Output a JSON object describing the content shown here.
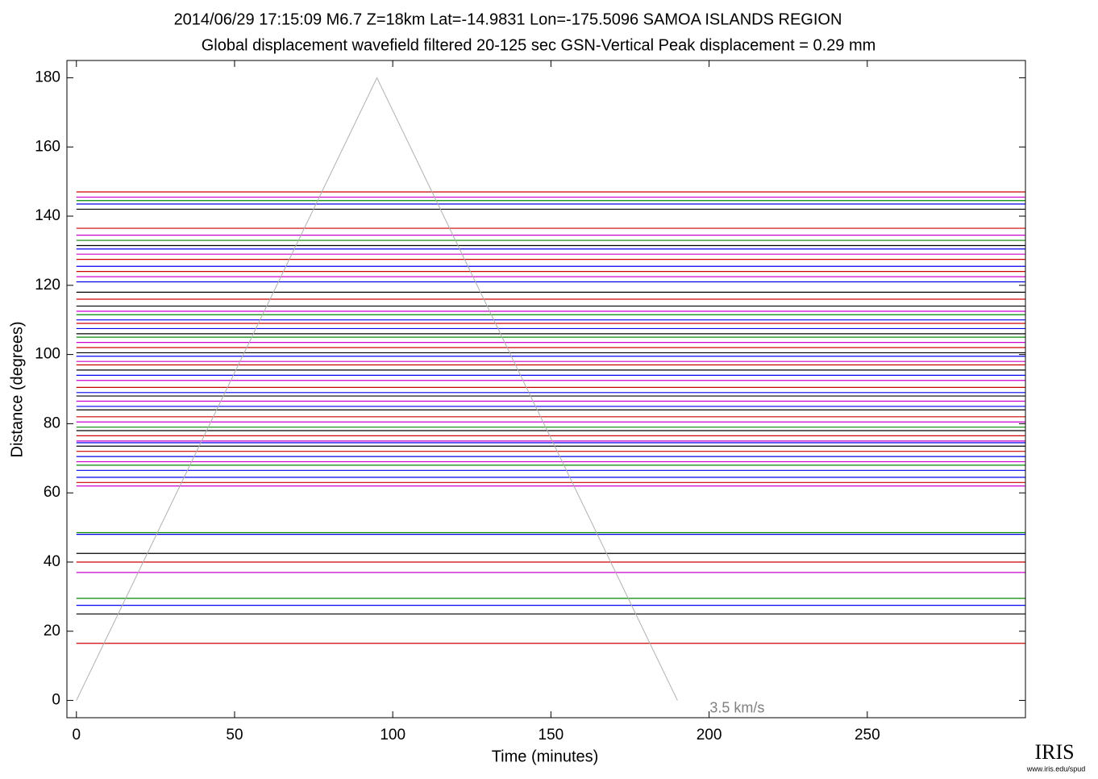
{
  "chart_data": {
    "type": "record-section",
    "title": "2014/06/29  17:15:09  M6.7  Z=18km  Lat=-14.9831 Lon=-175.5096  SAMOA ISLANDS REGION",
    "subtitle": "Global displacement wavefield     filtered 20-125 sec    GSN-Vertical    Peak displacement = 0.29 mm",
    "xlabel": "Time (minutes)",
    "ylabel": "Distance (degrees)",
    "xlim": [
      -3,
      300
    ],
    "ylim": [
      -5,
      185
    ],
    "xticks": [
      0,
      50,
      100,
      150,
      200,
      250
    ],
    "yticks": [
      0,
      20,
      40,
      60,
      80,
      100,
      120,
      140,
      160,
      180
    ],
    "annotation": {
      "label": "3.5 km/s",
      "x": [
        0,
        95,
        190
      ],
      "y": [
        0,
        180,
        0
      ],
      "color": "#b0b0b0"
    },
    "traces": [
      {
        "distance": 16.5,
        "color": "#cc0000"
      },
      {
        "distance": 25,
        "color": "#000000"
      },
      {
        "distance": 27.5,
        "color": "#0000ee"
      },
      {
        "distance": 29.5,
        "color": "#008800"
      },
      {
        "distance": 37,
        "color": "#cc00cc"
      },
      {
        "distance": 40,
        "color": "#cc0000"
      },
      {
        "distance": 42.5,
        "color": "#000000"
      },
      {
        "distance": 48,
        "color": "#0000ee"
      },
      {
        "distance": 48.5,
        "color": "#008800"
      },
      {
        "distance": 62,
        "color": "#cc00cc"
      },
      {
        "distance": 63,
        "color": "#cc0000"
      },
      {
        "distance": 64.5,
        "color": "#0000ee"
      },
      {
        "distance": 66.5,
        "color": "#0000ee"
      },
      {
        "distance": 68,
        "color": "#008800"
      },
      {
        "distance": 69,
        "color": "#cc00cc"
      },
      {
        "distance": 70.5,
        "color": "#0000ee"
      },
      {
        "distance": 72,
        "color": "#cc0000"
      },
      {
        "distance": 73.5,
        "color": "#000000"
      },
      {
        "distance": 74.5,
        "color": "#0000ee"
      },
      {
        "distance": 75,
        "color": "#cc00cc"
      },
      {
        "distance": 76.5,
        "color": "#cc0000"
      },
      {
        "distance": 78,
        "color": "#000000"
      },
      {
        "distance": 79,
        "color": "#008800"
      },
      {
        "distance": 80.5,
        "color": "#cc00cc"
      },
      {
        "distance": 82,
        "color": "#cc0000"
      },
      {
        "distance": 84,
        "color": "#000000"
      },
      {
        "distance": 85,
        "color": "#0000ee"
      },
      {
        "distance": 86.5,
        "color": "#cc00cc"
      },
      {
        "distance": 88,
        "color": "#000000"
      },
      {
        "distance": 89,
        "color": "#0000ee"
      },
      {
        "distance": 90.5,
        "color": "#cc0000"
      },
      {
        "distance": 92.5,
        "color": "#cc00cc"
      },
      {
        "distance": 94,
        "color": "#0000ee"
      },
      {
        "distance": 95.5,
        "color": "#000000"
      },
      {
        "distance": 97,
        "color": "#cc0000"
      },
      {
        "distance": 98,
        "color": "#cc00cc"
      },
      {
        "distance": 99.5,
        "color": "#0000ee"
      },
      {
        "distance": 100.5,
        "color": "#000000"
      },
      {
        "distance": 102,
        "color": "#cc0000"
      },
      {
        "distance": 103.5,
        "color": "#cc00cc"
      },
      {
        "distance": 105,
        "color": "#008800"
      },
      {
        "distance": 106,
        "color": "#000000"
      },
      {
        "distance": 107.5,
        "color": "#0000ee"
      },
      {
        "distance": 109,
        "color": "#cc0000"
      },
      {
        "distance": 110,
        "color": "#0000ee"
      },
      {
        "distance": 111.5,
        "color": "#008800"
      },
      {
        "distance": 112.5,
        "color": "#cc00cc"
      },
      {
        "distance": 114,
        "color": "#000000"
      },
      {
        "distance": 116,
        "color": "#cc0000"
      },
      {
        "distance": 118,
        "color": "#000000"
      },
      {
        "distance": 121,
        "color": "#0000ee"
      },
      {
        "distance": 122.5,
        "color": "#cc00cc"
      },
      {
        "distance": 124,
        "color": "#cc0000"
      },
      {
        "distance": 125.5,
        "color": "#0000ee"
      },
      {
        "distance": 127.5,
        "color": "#cc0000"
      },
      {
        "distance": 129,
        "color": "#cc00cc"
      },
      {
        "distance": 130.5,
        "color": "#0000ee"
      },
      {
        "distance": 131.5,
        "color": "#000000"
      },
      {
        "distance": 133,
        "color": "#008800"
      },
      {
        "distance": 134.5,
        "color": "#cc00cc"
      },
      {
        "distance": 136.5,
        "color": "#cc0000"
      },
      {
        "distance": 142,
        "color": "#000000"
      },
      {
        "distance": 143.5,
        "color": "#0000ee"
      },
      {
        "distance": 144.5,
        "color": "#008800"
      },
      {
        "distance": 145.5,
        "color": "#cc00cc"
      },
      {
        "distance": 147,
        "color": "#cc0000"
      }
    ]
  },
  "logo": {
    "name": "IRIS",
    "url": "www.iris.edu/spud"
  }
}
